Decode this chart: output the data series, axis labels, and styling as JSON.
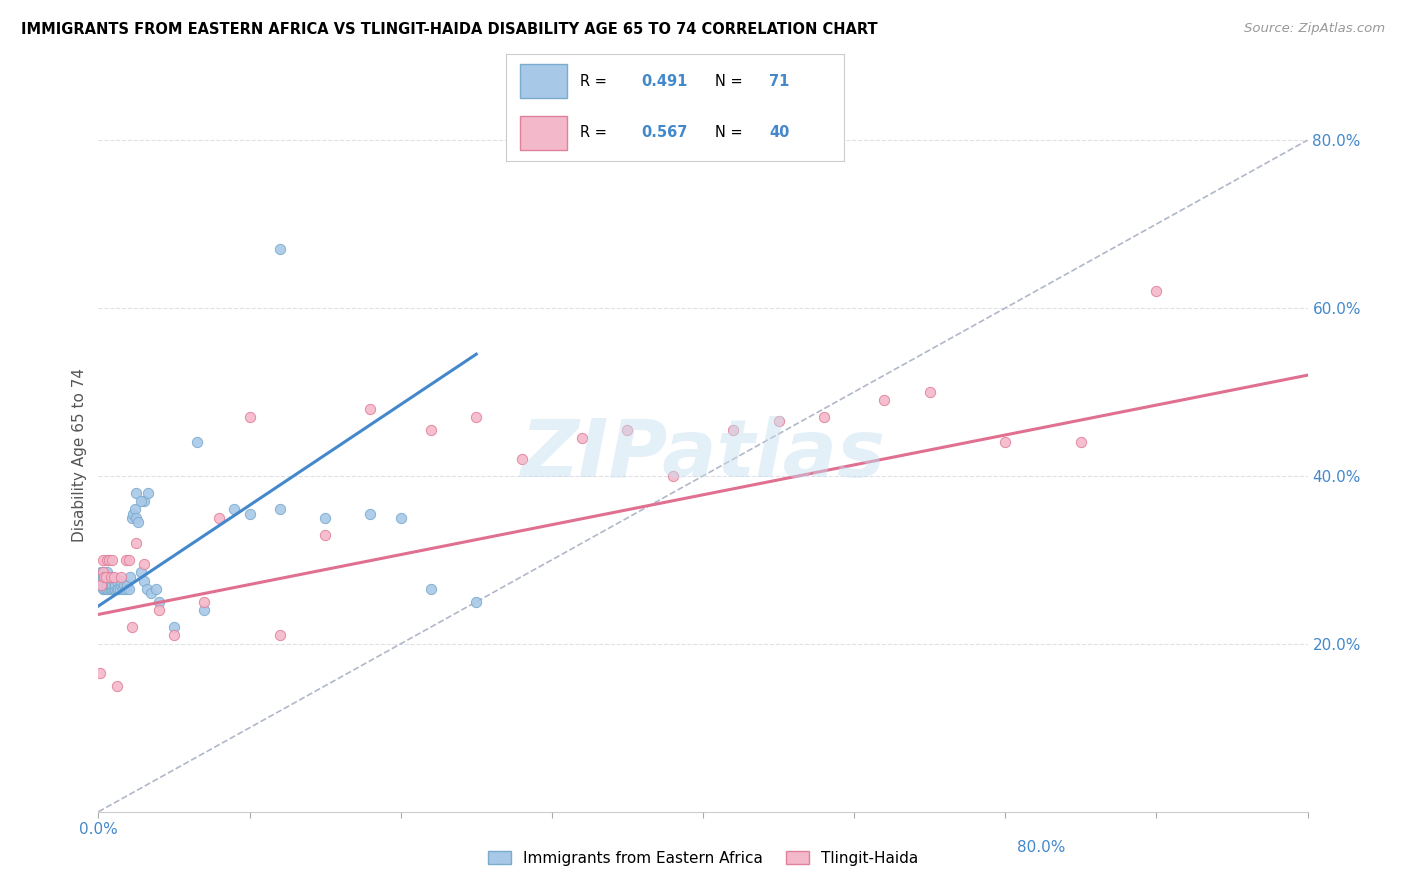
{
  "title": "IMMIGRANTS FROM EASTERN AFRICA VS TLINGIT-HAIDA DISABILITY AGE 65 TO 74 CORRELATION CHART",
  "source": "Source: ZipAtlas.com",
  "ylabel": "Disability Age 65 to 74",
  "xlim": [
    0.0,
    0.8
  ],
  "ylim": [
    0.0,
    0.85
  ],
  "watermark": "ZIPatlas",
  "blue_scatter_x": [
    0.001,
    0.001,
    0.002,
    0.002,
    0.002,
    0.003,
    0.003,
    0.003,
    0.003,
    0.004,
    0.004,
    0.004,
    0.005,
    0.005,
    0.005,
    0.005,
    0.006,
    0.006,
    0.006,
    0.006,
    0.007,
    0.007,
    0.007,
    0.008,
    0.008,
    0.008,
    0.009,
    0.009,
    0.01,
    0.01,
    0.011,
    0.011,
    0.012,
    0.012,
    0.013,
    0.014,
    0.015,
    0.015,
    0.016,
    0.017,
    0.018,
    0.019,
    0.02,
    0.021,
    0.022,
    0.023,
    0.024,
    0.025,
    0.026,
    0.028,
    0.03,
    0.032,
    0.035,
    0.038,
    0.04,
    0.05,
    0.065,
    0.07,
    0.09,
    0.1,
    0.12,
    0.15,
    0.18,
    0.2,
    0.22,
    0.25,
    0.03,
    0.025,
    0.028,
    0.033,
    0.12
  ],
  "blue_scatter_y": [
    0.27,
    0.28,
    0.275,
    0.285,
    0.27,
    0.265,
    0.27,
    0.28,
    0.285,
    0.27,
    0.265,
    0.275,
    0.265,
    0.27,
    0.28,
    0.275,
    0.265,
    0.27,
    0.275,
    0.285,
    0.265,
    0.27,
    0.28,
    0.265,
    0.27,
    0.275,
    0.265,
    0.27,
    0.265,
    0.275,
    0.265,
    0.27,
    0.265,
    0.275,
    0.265,
    0.265,
    0.27,
    0.275,
    0.265,
    0.27,
    0.265,
    0.27,
    0.265,
    0.28,
    0.35,
    0.355,
    0.36,
    0.35,
    0.345,
    0.285,
    0.275,
    0.265,
    0.26,
    0.265,
    0.25,
    0.22,
    0.44,
    0.24,
    0.36,
    0.355,
    0.36,
    0.35,
    0.355,
    0.35,
    0.265,
    0.25,
    0.37,
    0.38,
    0.37,
    0.38,
    0.67
  ],
  "pink_scatter_x": [
    0.001,
    0.002,
    0.003,
    0.003,
    0.004,
    0.005,
    0.006,
    0.007,
    0.008,
    0.009,
    0.01,
    0.012,
    0.015,
    0.018,
    0.02,
    0.022,
    0.025,
    0.03,
    0.04,
    0.05,
    0.07,
    0.08,
    0.1,
    0.12,
    0.15,
    0.18,
    0.22,
    0.25,
    0.28,
    0.32,
    0.35,
    0.38,
    0.42,
    0.45,
    0.48,
    0.52,
    0.55,
    0.6,
    0.65,
    0.7
  ],
  "pink_scatter_y": [
    0.165,
    0.27,
    0.285,
    0.3,
    0.28,
    0.28,
    0.3,
    0.3,
    0.28,
    0.3,
    0.28,
    0.15,
    0.28,
    0.3,
    0.3,
    0.22,
    0.32,
    0.295,
    0.24,
    0.21,
    0.25,
    0.35,
    0.47,
    0.21,
    0.33,
    0.48,
    0.455,
    0.47,
    0.42,
    0.445,
    0.455,
    0.4,
    0.455,
    0.465,
    0.47,
    0.49,
    0.5,
    0.44,
    0.44,
    0.62
  ],
  "blue_trend_x": [
    0.0,
    0.25
  ],
  "blue_trend_y": [
    0.245,
    0.545
  ],
  "pink_trend_x": [
    0.0,
    0.8
  ],
  "pink_trend_y": [
    0.235,
    0.52
  ],
  "dashed_trend_x": [
    0.0,
    0.8
  ],
  "dashed_trend_y": [
    0.0,
    0.8
  ],
  "xtick_positions": [
    0.0,
    0.1,
    0.2,
    0.3,
    0.4,
    0.5,
    0.6,
    0.7,
    0.8
  ],
  "xtick_labels": [
    "0.0%",
    "",
    "",
    "",
    "",
    "",
    "",
    "",
    ""
  ],
  "ytick_right_positions": [
    0.2,
    0.4,
    0.6,
    0.8
  ],
  "ytick_right_labels": [
    "20.0%",
    "40.0%",
    "60.0%",
    "80.0%"
  ],
  "blue_scatter_color": "#a8c8e8",
  "blue_scatter_edge": "#7aabcc",
  "pink_scatter_color": "#f4b8cb",
  "pink_scatter_edge": "#e0809a",
  "blue_line_color": "#4488cc",
  "pink_line_color": "#e07090",
  "dashed_color": "#b0b8c8",
  "grid_color": "#e0e0e8",
  "right_tick_color": "#4488cc",
  "bottom_tick_color": "#4488cc",
  "ylabel_color": "#555555"
}
